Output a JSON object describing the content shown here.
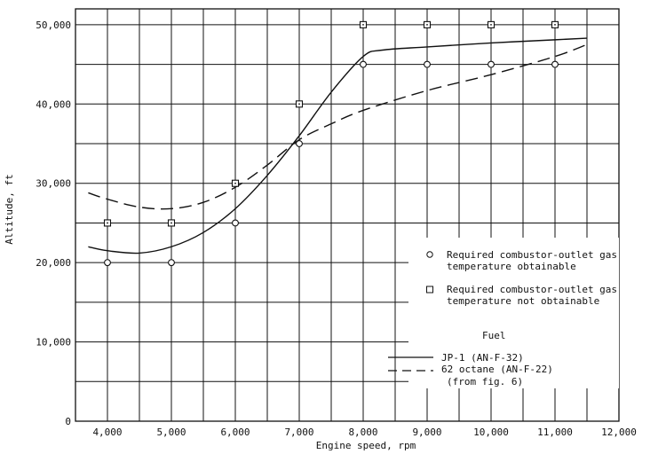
{
  "chart_data": {
    "type": "scatter",
    "xlabel": "Engine speed, rpm",
    "ylabel": "Altitude, ft",
    "xlim": [
      3500,
      12000
    ],
    "ylim": [
      0,
      52000
    ],
    "x_ticks": [
      4000,
      5000,
      6000,
      7000,
      8000,
      9000,
      10000,
      11000,
      12000
    ],
    "x_tick_labels": [
      "4,000",
      "5,000",
      "6,000",
      "7,000",
      "8,000",
      "9,000",
      "10,000",
      "11,000",
      "12,000"
    ],
    "y_ticks": [
      0,
      10000,
      20000,
      30000,
      40000,
      50000
    ],
    "y_tick_labels": [
      "0",
      "10,000",
      "20,000",
      "30,000",
      "40,000",
      "50,000"
    ],
    "grid": true,
    "series": [
      {
        "name": "Required combustor-outlet gas temperature obtainable",
        "marker": "circle",
        "points": [
          [
            4000,
            20000
          ],
          [
            5000,
            20000
          ],
          [
            6000,
            25000
          ],
          [
            7000,
            35000
          ],
          [
            8000,
            45000
          ],
          [
            9000,
            45000
          ],
          [
            10000,
            45000
          ],
          [
            11000,
            45000
          ]
        ]
      },
      {
        "name": "Required combustor-outlet gas temperature not obtainable",
        "marker": "square",
        "points": [
          [
            4000,
            25000
          ],
          [
            5000,
            25000
          ],
          [
            6000,
            30000
          ],
          [
            7000,
            40000
          ],
          [
            8000,
            50000
          ],
          [
            9000,
            50000
          ],
          [
            10000,
            50000
          ],
          [
            11000,
            50000
          ]
        ]
      },
      {
        "name": "JP-1 (AN-F-32)",
        "style": "solid",
        "points": [
          [
            3700,
            22000
          ],
          [
            4000,
            21500
          ],
          [
            4500,
            21200
          ],
          [
            5000,
            22000
          ],
          [
            5500,
            23800
          ],
          [
            6000,
            26800
          ],
          [
            6500,
            31000
          ],
          [
            7000,
            36000
          ],
          [
            7500,
            41500
          ],
          [
            8000,
            46000
          ],
          [
            8300,
            46800
          ],
          [
            9000,
            47200
          ],
          [
            10000,
            47700
          ],
          [
            11000,
            48100
          ],
          [
            11500,
            48300
          ]
        ]
      },
      {
        "name": "62 octane (AN-F-22)",
        "note": "(from fig. 6)",
        "style": "dashed",
        "points": [
          [
            3700,
            28800
          ],
          [
            4000,
            28000
          ],
          [
            4500,
            27000
          ],
          [
            5000,
            26800
          ],
          [
            5500,
            27600
          ],
          [
            6000,
            29500
          ],
          [
            6500,
            32300
          ],
          [
            7000,
            35500
          ],
          [
            7500,
            37500
          ],
          [
            8000,
            39200
          ],
          [
            9000,
            41700
          ],
          [
            10000,
            43700
          ],
          [
            11000,
            46000
          ],
          [
            11500,
            47500
          ]
        ]
      }
    ],
    "legend": {
      "position": "bottom-right",
      "circle_label": [
        "Required combustor-outlet gas",
        "temperature obtainable"
      ],
      "square_label": [
        "Required combustor-outlet gas",
        "temperature not obtainable"
      ],
      "fuel_heading": "Fuel",
      "solid_label": "JP-1 (AN-F-32)",
      "dashed_label": "62 octane (AN-F-22)",
      "dashed_note": "(from fig. 6)"
    }
  }
}
